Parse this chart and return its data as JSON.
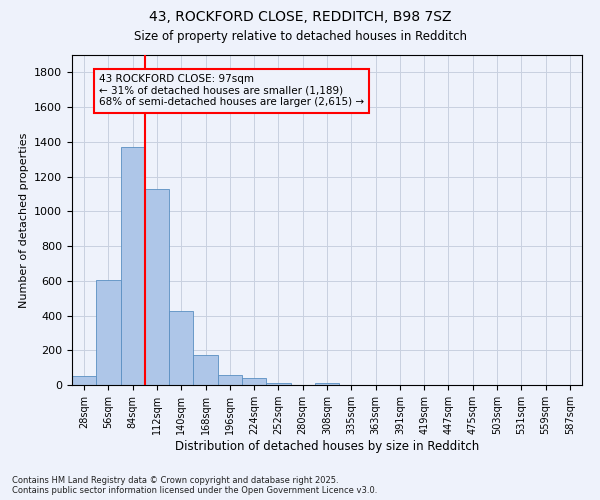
{
  "title_line1": "43, ROCKFORD CLOSE, REDDITCH, B98 7SZ",
  "title_line2": "Size of property relative to detached houses in Redditch",
  "xlabel": "Distribution of detached houses by size in Redditch",
  "ylabel": "Number of detached properties",
  "bin_labels": [
    "28sqm",
    "56sqm",
    "84sqm",
    "112sqm",
    "140sqm",
    "168sqm",
    "196sqm",
    "224sqm",
    "252sqm",
    "280sqm",
    "308sqm",
    "335sqm",
    "363sqm",
    "391sqm",
    "419sqm",
    "447sqm",
    "475sqm",
    "503sqm",
    "531sqm",
    "559sqm",
    "587sqm"
  ],
  "bar_heights": [
    50,
    605,
    1370,
    1130,
    425,
    170,
    60,
    38,
    12,
    0,
    12,
    0,
    0,
    0,
    0,
    0,
    0,
    0,
    0,
    0,
    0
  ],
  "bar_color": "#aec6e8",
  "bar_edge_color": "#5a8fc2",
  "ylim": [
    0,
    1900
  ],
  "yticks": [
    0,
    200,
    400,
    600,
    800,
    1000,
    1200,
    1400,
    1600,
    1800
  ],
  "vline_color": "red",
  "vline_x": 2.5,
  "annotation_text": "43 ROCKFORD CLOSE: 97sqm\n← 31% of detached houses are smaller (1,189)\n68% of semi-detached houses are larger (2,615) →",
  "annotation_box_color": "red",
  "footnote": "Contains HM Land Registry data © Crown copyright and database right 2025.\nContains public sector information licensed under the Open Government Licence v3.0.",
  "bg_color": "#eef2fb",
  "grid_color": "#c8d0e0"
}
